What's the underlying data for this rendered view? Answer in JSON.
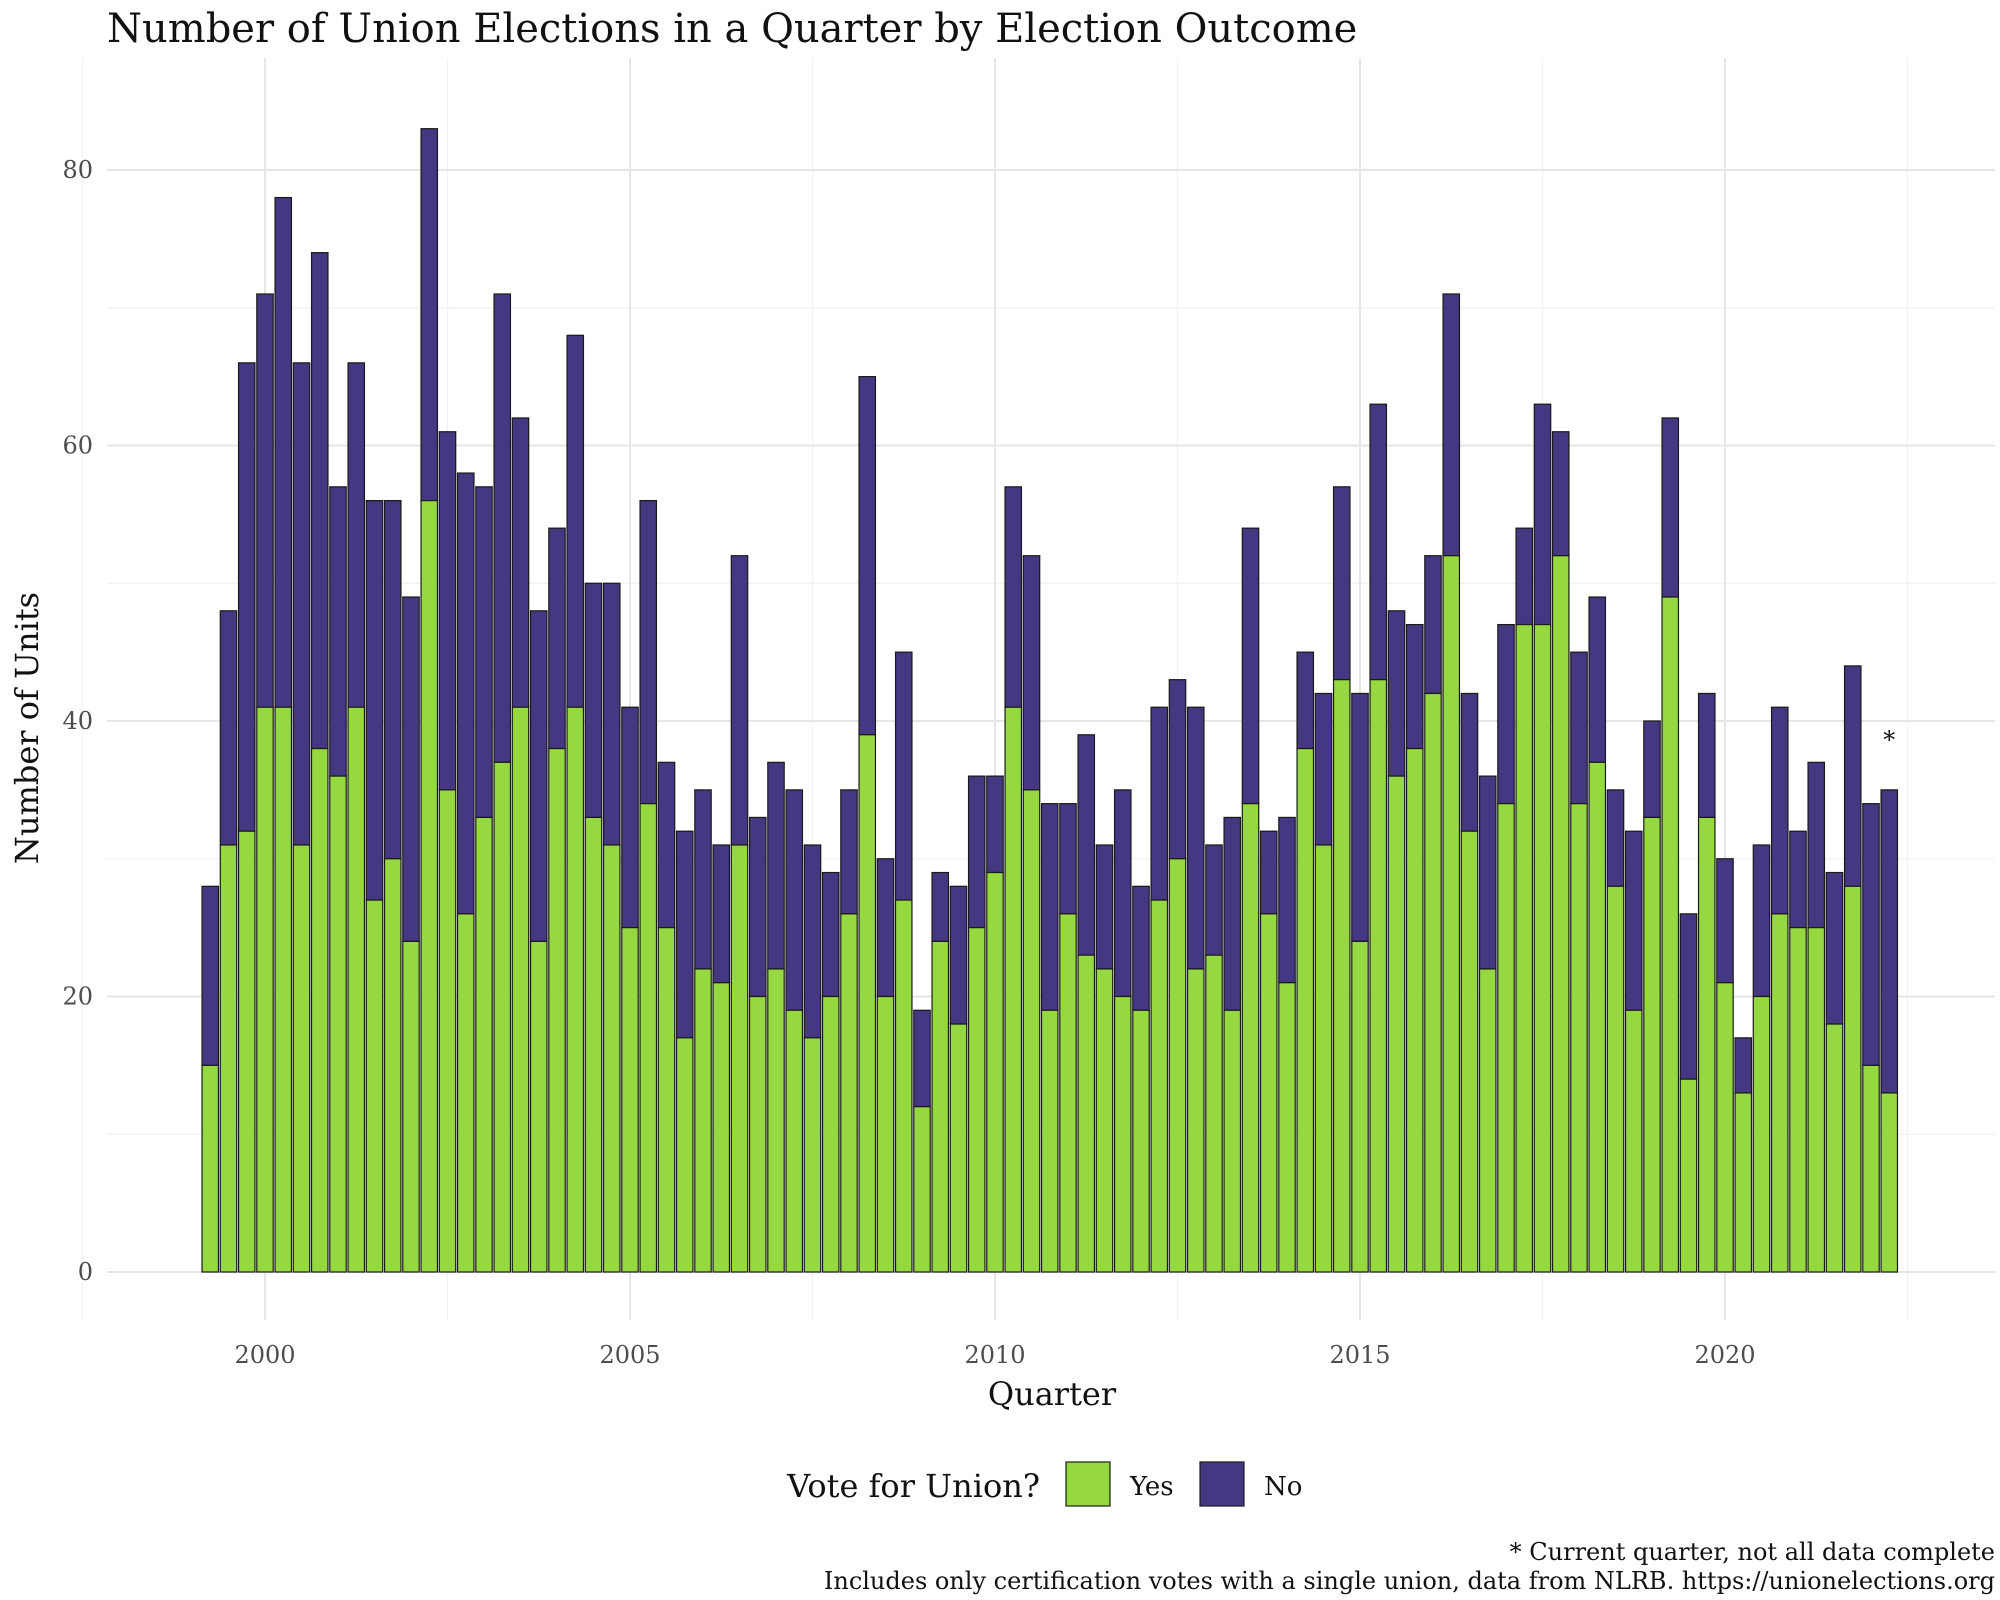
{
  "chart_data": {
    "type": "bar",
    "stacked": true,
    "title": "Number of Union Elections in a Quarter by Election Outcome",
    "xlabel": "Quarter",
    "ylabel": "Number of Units",
    "x_ticks": [
      "2000",
      "2005",
      "2010",
      "2015",
      "2020"
    ],
    "y_ticks": [
      "0",
      "20",
      "40",
      "60",
      "80"
    ],
    "ylim": [
      0,
      86
    ],
    "grid": true,
    "legend": {
      "title": "Vote for Union?",
      "position": "bottom",
      "entries": [
        {
          "label": "Yes",
          "color": "#95d840"
        },
        {
          "label": "No",
          "color": "#453781"
        }
      ]
    },
    "categories": [
      "1999 Q2",
      "1999 Q3",
      "1999 Q4",
      "2000 Q1",
      "2000 Q2",
      "2000 Q3",
      "2000 Q4",
      "2001 Q1",
      "2001 Q2",
      "2001 Q3",
      "2001 Q4",
      "2002 Q1",
      "2002 Q2",
      "2002 Q3",
      "2002 Q4",
      "2003 Q1",
      "2003 Q2",
      "2003 Q3",
      "2003 Q4",
      "2004 Q1",
      "2004 Q2",
      "2004 Q3",
      "2004 Q4",
      "2005 Q1",
      "2005 Q2",
      "2005 Q3",
      "2005 Q4",
      "2006 Q1",
      "2006 Q2",
      "2006 Q3",
      "2006 Q4",
      "2007 Q1",
      "2007 Q2",
      "2007 Q3",
      "2007 Q4",
      "2008 Q1",
      "2008 Q2",
      "2008 Q3",
      "2008 Q4",
      "2009 Q1",
      "2009 Q2",
      "2009 Q3",
      "2009 Q4",
      "2010 Q1",
      "2010 Q2",
      "2010 Q3",
      "2010 Q4",
      "2011 Q1",
      "2011 Q2",
      "2011 Q3",
      "2011 Q4",
      "2012 Q1",
      "2012 Q2",
      "2012 Q3",
      "2012 Q4",
      "2013 Q1",
      "2013 Q2",
      "2013 Q3",
      "2013 Q4",
      "2014 Q1",
      "2014 Q2",
      "2014 Q3",
      "2014 Q4",
      "2015 Q1",
      "2015 Q2",
      "2015 Q3",
      "2015 Q4",
      "2016 Q1",
      "2016 Q2",
      "2016 Q3",
      "2016 Q4",
      "2017 Q1",
      "2017 Q2",
      "2017 Q3",
      "2017 Q4",
      "2018 Q1",
      "2018 Q2",
      "2018 Q3",
      "2018 Q4",
      "2019 Q1",
      "2019 Q2",
      "2019 Q3",
      "2019 Q4",
      "2020 Q1",
      "2020 Q2",
      "2020 Q3",
      "2020 Q4",
      "2021 Q1",
      "2021 Q2",
      "2021 Q3",
      "2021 Q4",
      "2022 Q1",
      "2022 Q2"
    ],
    "series": [
      {
        "name": "Yes",
        "color": "#95d840",
        "values": [
          15,
          31,
          32,
          41,
          41,
          31,
          38,
          36,
          41,
          27,
          30,
          24,
          56,
          35,
          26,
          33,
          37,
          41,
          24,
          38,
          41,
          33,
          31,
          25,
          34,
          25,
          17,
          22,
          21,
          31,
          20,
          22,
          19,
          17,
          20,
          26,
          39,
          20,
          27,
          12,
          24,
          18,
          25,
          29,
          41,
          35,
          19,
          26,
          23,
          22,
          20,
          19,
          27,
          30,
          22,
          23,
          19,
          34,
          26,
          21,
          38,
          31,
          43,
          24,
          43,
          36,
          38,
          42,
          52,
          32,
          22,
          34,
          47,
          47,
          52,
          34,
          37,
          28,
          19,
          33,
          49,
          14,
          33,
          21,
          13,
          20,
          26,
          25,
          25,
          18,
          28,
          15,
          13
        ]
      },
      {
        "name": "No",
        "color": "#453781",
        "values": [
          13,
          17,
          34,
          30,
          37,
          35,
          36,
          21,
          25,
          29,
          26,
          25,
          27,
          26,
          32,
          24,
          34,
          21,
          24,
          16,
          27,
          17,
          19,
          16,
          22,
          12,
          15,
          13,
          10,
          21,
          13,
          15,
          16,
          14,
          9,
          9,
          26,
          10,
          18,
          7,
          5,
          10,
          11,
          7,
          16,
          17,
          15,
          8,
          16,
          9,
          15,
          9,
          14,
          13,
          19,
          8,
          14,
          20,
          6,
          12,
          7,
          11,
          14,
          18,
          20,
          12,
          9,
          10,
          19,
          10,
          14,
          13,
          7,
          16,
          9,
          11,
          12,
          7,
          13,
          7,
          13,
          12,
          9,
          9,
          4,
          11,
          15,
          7,
          12,
          11,
          16,
          19,
          22
        ]
      }
    ],
    "annotations": [
      {
        "text": "*",
        "category": "2022 Q2"
      }
    ],
    "caption": [
      "* Current quarter, not all data complete",
      "Includes only certification votes with a single union, data from NLRB. https://unionelections.org"
    ]
  }
}
